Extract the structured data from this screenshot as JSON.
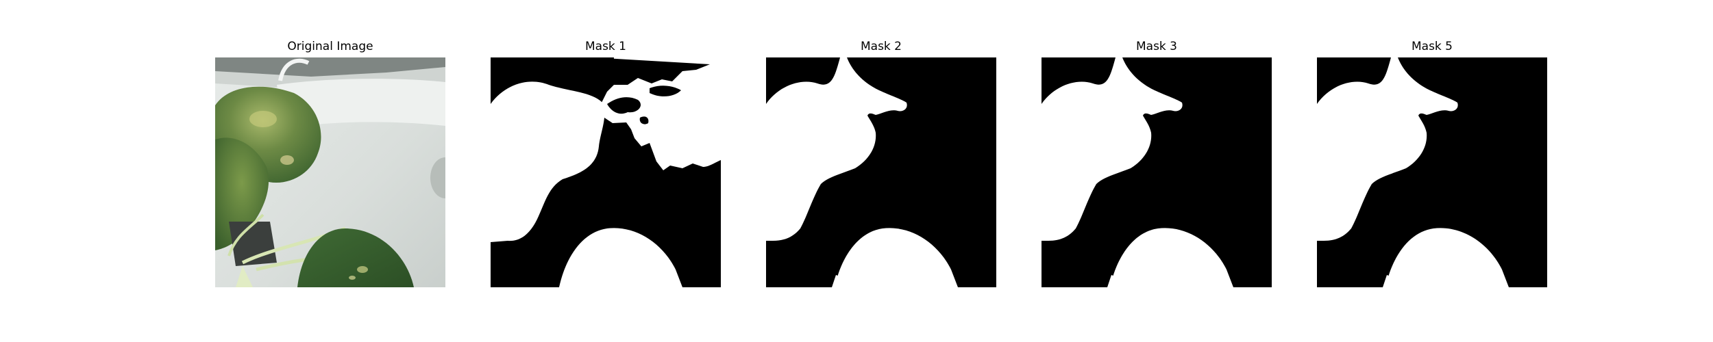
{
  "figure": {
    "panels": [
      {
        "title": "Original Image"
      },
      {
        "title": "Mask 1"
      },
      {
        "title": "Mask 2"
      },
      {
        "title": "Mask 3"
      },
      {
        "title": "Mask 5"
      }
    ]
  },
  "colors": {
    "mask_background": "#000000",
    "mask_foreground": "#ffffff",
    "leaf_dark": "#4f7a3a",
    "leaf_light": "#9bb46a",
    "container_white": "#dfe3e0"
  }
}
